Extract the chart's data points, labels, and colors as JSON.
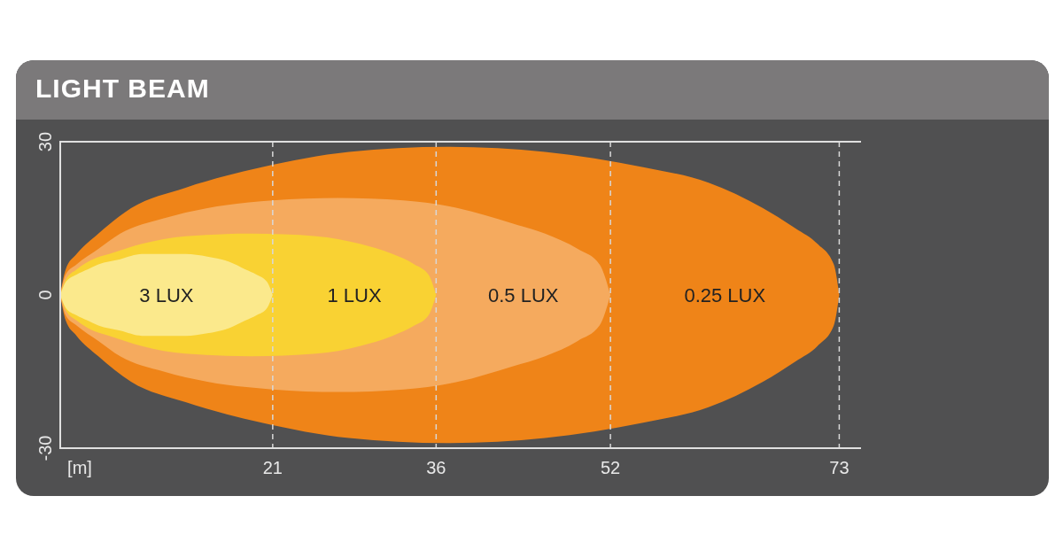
{
  "chart_data": {
    "type": "area",
    "title": "LIGHT BEAM",
    "xlabel": "[m]",
    "series": [
      {
        "name": "0.25 LUX",
        "color": "#ef8418",
        "x": [
          1.5,
          2,
          3,
          5,
          8,
          13,
          20,
          28,
          37,
          46,
          55,
          61,
          66,
          69,
          71,
          72.5,
          73
        ],
        "values": [
          0,
          5,
          8,
          12,
          17,
          21,
          25,
          28,
          29,
          28,
          25,
          22,
          17,
          13,
          10,
          6,
          0
        ]
      },
      {
        "color": "#ef8418",
        "x": [
          1.5,
          2,
          3,
          5,
          8,
          13,
          20,
          28,
          37,
          46,
          55,
          61,
          66,
          69,
          71,
          72.5,
          73
        ],
        "values": [
          0,
          -5,
          -8,
          -12,
          -17,
          -21,
          -25,
          -28,
          -29,
          -28,
          -25,
          -22,
          -17,
          -13,
          -10,
          -6,
          0
        ]
      },
      {
        "name": "0.5 LUX",
        "color": "#f5aa5e",
        "x": [
          1.5,
          2,
          3,
          5,
          7,
          11,
          15,
          21,
          27,
          33,
          38,
          43,
          46,
          49,
          51,
          52
        ],
        "values": [
          0,
          4,
          6,
          9,
          12,
          15,
          17,
          18.5,
          19,
          18.5,
          17,
          14,
          12,
          9,
          6,
          0
        ]
      },
      {
        "color": "#f5aa5e",
        "x": [
          1.5,
          2,
          3,
          5,
          7,
          11,
          15,
          21,
          27,
          33,
          38,
          43,
          46,
          49,
          51,
          52
        ],
        "values": [
          0,
          -4,
          -6,
          -9,
          -12,
          -15,
          -17,
          -18.5,
          -19,
          -18.5,
          -17,
          -14,
          -12,
          -9,
          -6,
          0
        ]
      },
      {
        "name": "1 LUX",
        "color": "#f9d233",
        "x": [
          1.5,
          2,
          3,
          4.5,
          6,
          9,
          13,
          19,
          25,
          29,
          32,
          34,
          35.3,
          36
        ],
        "values": [
          0,
          3,
          5,
          7,
          8,
          10,
          11.5,
          12,
          11.5,
          10,
          8,
          6,
          4,
          0
        ]
      },
      {
        "color": "#f9d233",
        "x": [
          1.5,
          2,
          3,
          4.5,
          6,
          9,
          13,
          19,
          25,
          29,
          32,
          34,
          35.3,
          36
        ],
        "values": [
          0,
          -3,
          -5,
          -7,
          -8,
          -10,
          -11.5,
          -12,
          -11.5,
          -10,
          -8,
          -6,
          -4,
          0
        ]
      },
      {
        "name": "3 LUX",
        "color": "#fbe98c",
        "x": [
          1.5,
          2,
          3,
          4,
          5,
          7,
          9,
          11,
          13,
          15,
          17,
          18.5,
          19.5,
          20.5,
          21
        ],
        "values": [
          0,
          2.5,
          4,
          5,
          6,
          7,
          8,
          8,
          8,
          7.5,
          6.5,
          5,
          4,
          2.5,
          0
        ]
      },
      {
        "color": "#fbe98c",
        "x": [
          1.5,
          2,
          3,
          4,
          5,
          7,
          9,
          11,
          13,
          15,
          17,
          18.5,
          19.5,
          20.5,
          21
        ],
        "values": [
          0,
          -2.5,
          -4,
          -5,
          -6,
          -7,
          -8,
          -8,
          -8,
          -7.5,
          -6.5,
          -5,
          -4,
          -2.5,
          0
        ]
      }
    ],
    "xlim": [
      1.5,
      75
    ],
    "xticks": [
      21,
      36,
      52,
      73
    ],
    "ylim": [
      -30,
      30
    ],
    "yticks": [
      -30,
      0,
      30
    ],
    "ref_lines": [
      {
        "axis": "x",
        "value": 21,
        "color": "#d8d8d8",
        "line_style": "dashed"
      },
      {
        "axis": "x",
        "value": 36,
        "color": "#d8d8d8",
        "line_style": "dashed"
      },
      {
        "axis": "x",
        "value": 52,
        "color": "#d8d8d8",
        "line_style": "dashed"
      },
      {
        "axis": "x",
        "value": 73,
        "color": "#d8d8d8",
        "line_style": "dashed"
      }
    ]
  }
}
